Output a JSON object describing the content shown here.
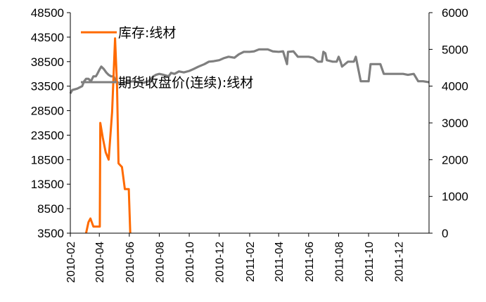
{
  "chart_data": {
    "type": "line",
    "left_axis": {
      "ticks": [
        3500,
        8500,
        13500,
        18500,
        23500,
        28500,
        33500,
        38500,
        43500,
        48500
      ],
      "tick_labels": [
        "3500",
        "8500",
        "13500",
        "18500",
        "23500",
        "28500",
        "33500",
        "38500",
        "43500",
        "48500"
      ],
      "range": [
        3500,
        48500
      ]
    },
    "right_axis": {
      "ticks": [
        0,
        1000,
        2000,
        3000,
        4000,
        5000,
        6000
      ],
      "tick_labels": [
        "0",
        "1000",
        "2000",
        "3000",
        "4000",
        "5000",
        "6000"
      ],
      "range": [
        0,
        6000
      ]
    },
    "x_axis": {
      "range": [
        "2010-02-01",
        "2012-02-01"
      ],
      "tick_labels": [
        "2010-02",
        "2010-04",
        "2010-06",
        "2010-08",
        "2010-10",
        "2010-12",
        "2011-02",
        "2011-04",
        "2011-06",
        "2011-08",
        "2011-10",
        "2011-12"
      ],
      "tick_dates": [
        "2010-02-01",
        "2010-04-01",
        "2010-06-01",
        "2010-08-01",
        "2010-10-01",
        "2010-12-01",
        "2011-02-01",
        "2011-04-01",
        "2011-06-01",
        "2011-08-01",
        "2011-10-01",
        "2011-12-01"
      ]
    },
    "legend_position": "top-left",
    "series": [
      {
        "name": "库存:线材",
        "axis": "right",
        "color": "#ff6a00",
        "points": [
          [
            "2010-03-05",
            0
          ],
          [
            "2010-03-10",
            300
          ],
          [
            "2010-03-14",
            400
          ],
          [
            "2010-03-20",
            180
          ],
          [
            "2010-03-27",
            180
          ],
          [
            "2010-04-02",
            180
          ],
          [
            "2010-04-03",
            3000
          ],
          [
            "2010-04-08",
            2600
          ],
          [
            "2010-04-14",
            2200
          ],
          [
            "2010-04-20",
            2000
          ],
          [
            "2010-04-27",
            3300
          ],
          [
            "2010-05-03",
            5300
          ],
          [
            "2010-05-07",
            4000
          ],
          [
            "2010-05-10",
            1900
          ],
          [
            "2010-05-17",
            1800
          ],
          [
            "2010-05-23",
            1200
          ],
          [
            "2010-05-31",
            1200
          ],
          [
            "2010-06-03",
            0
          ]
        ]
      },
      {
        "name": "期货收盘价(连续):线材",
        "axis": "left",
        "color": "#7f7f7f",
        "points": [
          [
            "2010-02-01",
            32000
          ],
          [
            "2010-02-05",
            32700
          ],
          [
            "2010-02-15",
            33000
          ],
          [
            "2010-02-25",
            33500
          ],
          [
            "2010-03-01",
            34500
          ],
          [
            "2010-03-05",
            35000
          ],
          [
            "2010-03-10",
            35000
          ],
          [
            "2010-03-15",
            34500
          ],
          [
            "2010-03-20",
            35500
          ],
          [
            "2010-03-25",
            35500
          ],
          [
            "2010-03-28",
            36000
          ],
          [
            "2010-04-01",
            36800
          ],
          [
            "2010-04-05",
            37500
          ],
          [
            "2010-04-10",
            37000
          ],
          [
            "2010-04-15",
            36300
          ],
          [
            "2010-04-20",
            35800
          ],
          [
            "2010-04-25",
            35500
          ],
          [
            "2010-04-30",
            35500
          ],
          [
            "2010-05-05",
            34500
          ],
          [
            "2010-05-10",
            34200
          ],
          [
            "2010-05-15",
            34000
          ],
          [
            "2010-05-20",
            34200
          ],
          [
            "2010-05-25",
            34300
          ],
          [
            "2010-06-01",
            34400
          ],
          [
            "2010-06-10",
            34500
          ],
          [
            "2010-06-20",
            34300
          ],
          [
            "2010-06-30",
            34200
          ],
          [
            "2010-07-10",
            34500
          ],
          [
            "2010-07-20",
            35500
          ],
          [
            "2010-07-25",
            35800
          ],
          [
            "2010-08-01",
            36000
          ],
          [
            "2010-08-10",
            35800
          ],
          [
            "2010-08-20",
            35500
          ],
          [
            "2010-08-25",
            36200
          ],
          [
            "2010-09-01",
            36000
          ],
          [
            "2010-09-10",
            36500
          ],
          [
            "2010-09-20",
            36300
          ],
          [
            "2010-10-01",
            36600
          ],
          [
            "2010-10-10",
            37000
          ],
          [
            "2010-10-20",
            37500
          ],
          [
            "2010-11-01",
            38000
          ],
          [
            "2010-11-10",
            38500
          ],
          [
            "2010-11-20",
            38600
          ],
          [
            "2010-12-01",
            38800
          ],
          [
            "2010-12-10",
            39200
          ],
          [
            "2010-12-20",
            39500
          ],
          [
            "2011-01-01",
            39300
          ],
          [
            "2011-01-10",
            40000
          ],
          [
            "2011-01-20",
            40500
          ],
          [
            "2011-02-01",
            40500
          ],
          [
            "2011-02-10",
            40600
          ],
          [
            "2011-02-20",
            41000
          ],
          [
            "2011-03-01",
            41000
          ],
          [
            "2011-03-10",
            41000
          ],
          [
            "2011-03-20",
            40600
          ],
          [
            "2011-04-01",
            40500
          ],
          [
            "2011-04-10",
            40600
          ],
          [
            "2011-04-18",
            38000
          ],
          [
            "2011-04-20",
            40500
          ],
          [
            "2011-05-01",
            40600
          ],
          [
            "2011-05-10",
            39500
          ],
          [
            "2011-05-20",
            39500
          ],
          [
            "2011-06-01",
            39500
          ],
          [
            "2011-06-10",
            39300
          ],
          [
            "2011-06-20",
            38500
          ],
          [
            "2011-06-28",
            38500
          ],
          [
            "2011-07-01",
            40500
          ],
          [
            "2011-07-05",
            40200
          ],
          [
            "2011-07-08",
            38800
          ],
          [
            "2011-07-20",
            38500
          ],
          [
            "2011-07-28",
            38500
          ],
          [
            "2011-08-01",
            39500
          ],
          [
            "2011-08-05",
            38500
          ],
          [
            "2011-08-08",
            37500
          ],
          [
            "2011-08-20",
            38500
          ],
          [
            "2011-09-01",
            38500
          ],
          [
            "2011-09-05",
            39500
          ],
          [
            "2011-09-15",
            34500
          ],
          [
            "2011-09-20",
            34500
          ],
          [
            "2011-09-25",
            34500
          ],
          [
            "2011-10-01",
            34500
          ],
          [
            "2011-10-05",
            38000
          ],
          [
            "2011-10-15",
            38000
          ],
          [
            "2011-10-25",
            38000
          ],
          [
            "2011-11-01",
            36000
          ],
          [
            "2011-11-10",
            36000
          ],
          [
            "2011-11-20",
            36000
          ],
          [
            "2011-12-01",
            36000
          ],
          [
            "2011-12-10",
            36000
          ],
          [
            "2011-12-20",
            35800
          ],
          [
            "2012-01-01",
            36000
          ],
          [
            "2012-01-10",
            34500
          ],
          [
            "2012-01-20",
            34500
          ],
          [
            "2012-02-01",
            34300
          ]
        ]
      }
    ]
  }
}
